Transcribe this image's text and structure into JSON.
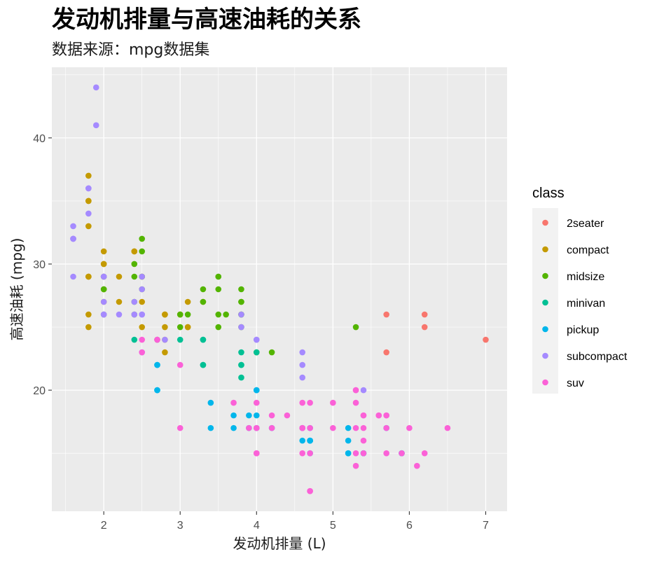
{
  "chart_data": {
    "type": "scatter",
    "title": "发动机排量与高速油耗的关系",
    "subtitle": "数据来源：mpg数据集",
    "xlabel": "发动机排量 (L)",
    "ylabel": "高速油耗 (mpg)",
    "xlim": [
      1.32,
      7.28
    ],
    "ylim": [
      10.4,
      45.6
    ],
    "x_ticks": [
      2,
      3,
      4,
      5,
      6,
      7
    ],
    "y_ticks": [
      20,
      30,
      40
    ],
    "grid": true,
    "legend": {
      "title": "class",
      "position": "right",
      "entries": [
        {
          "name": "2seater",
          "color": "#F8766D"
        },
        {
          "name": "compact",
          "color": "#C49A00"
        },
        {
          "name": "midsize",
          "color": "#53B400"
        },
        {
          "name": "minivan",
          "color": "#00C094"
        },
        {
          "name": "pickup",
          "color": "#00B6EB"
        },
        {
          "name": "subcompact",
          "color": "#A58AFF"
        },
        {
          "name": "suv",
          "color": "#FB61D7"
        }
      ]
    },
    "series": [
      {
        "name": "2seater",
        "points": [
          [
            5.7,
            26
          ],
          [
            5.7,
            23
          ],
          [
            6.2,
            26
          ],
          [
            6.2,
            25
          ],
          [
            7.0,
            24
          ]
        ]
      },
      {
        "name": "compact",
        "points": [
          [
            1.8,
            29
          ],
          [
            1.8,
            29
          ],
          [
            2.0,
            31
          ],
          [
            2.0,
            30
          ],
          [
            2.8,
            26
          ],
          [
            2.8,
            26
          ],
          [
            3.1,
            27
          ],
          [
            1.8,
            26
          ],
          [
            1.8,
            25
          ],
          [
            2.0,
            28
          ],
          [
            2.0,
            27
          ],
          [
            2.8,
            25
          ],
          [
            3.1,
            25
          ],
          [
            3.1,
            25
          ],
          [
            2.2,
            27
          ],
          [
            2.2,
            29
          ],
          [
            2.4,
            31
          ],
          [
            2.4,
            31
          ],
          [
            3.0,
            26
          ],
          [
            3.0,
            26
          ],
          [
            3.3,
            27
          ],
          [
            1.8,
            33
          ],
          [
            1.8,
            35
          ],
          [
            1.8,
            37
          ],
          [
            1.8,
            35
          ],
          [
            1.8,
            29
          ],
          [
            2.0,
            29
          ],
          [
            2.0,
            30
          ],
          [
            2.8,
            26
          ],
          [
            2.0,
            29
          ],
          [
            2.5,
            27
          ],
          [
            2.5,
            25
          ],
          [
            2.5,
            29
          ],
          [
            2.5,
            29
          ],
          [
            2.8,
            24
          ],
          [
            2.8,
            23
          ],
          [
            2.7,
            24
          ]
        ]
      },
      {
        "name": "midsize",
        "points": [
          [
            2.4,
            27
          ],
          [
            2.4,
            30
          ],
          [
            3.1,
            26
          ],
          [
            3.5,
            29
          ],
          [
            3.6,
            26
          ],
          [
            2.4,
            29
          ],
          [
            3.0,
            26
          ],
          [
            3.3,
            28
          ],
          [
            3.3,
            27
          ],
          [
            3.8,
            28
          ],
          [
            3.8,
            27
          ],
          [
            3.8,
            26
          ],
          [
            5.3,
            25
          ],
          [
            2.0,
            29
          ],
          [
            2.0,
            28
          ],
          [
            2.5,
            32
          ],
          [
            2.5,
            31
          ],
          [
            2.5,
            29
          ],
          [
            2.5,
            28
          ],
          [
            3.5,
            25
          ],
          [
            3.5,
            26
          ],
          [
            3.8,
            25
          ],
          [
            4.0,
            23
          ],
          [
            4.2,
            23
          ],
          [
            3.8,
            26
          ],
          [
            3.8,
            27
          ],
          [
            2.0,
            28
          ],
          [
            2.0,
            26
          ],
          [
            2.4,
            26
          ],
          [
            3.0,
            25
          ],
          [
            3.5,
            29
          ],
          [
            3.5,
            28
          ]
        ]
      },
      {
        "name": "minivan",
        "points": [
          [
            2.4,
            24
          ],
          [
            3.0,
            24
          ],
          [
            3.3,
            22
          ],
          [
            3.3,
            22
          ],
          [
            3.3,
            24
          ],
          [
            3.3,
            24
          ],
          [
            3.8,
            22
          ],
          [
            3.8,
            21
          ],
          [
            3.8,
            23
          ],
          [
            4.0,
            23
          ],
          [
            3.8,
            22
          ]
        ]
      },
      {
        "name": "pickup",
        "points": [
          [
            2.7,
            20
          ],
          [
            2.7,
            22
          ],
          [
            3.4,
            17
          ],
          [
            3.4,
            19
          ],
          [
            3.9,
            18
          ],
          [
            4.7,
            17
          ],
          [
            4.7,
            16
          ],
          [
            4.7,
            16
          ],
          [
            5.2,
            15
          ],
          [
            5.2,
            15
          ],
          [
            3.7,
            18
          ],
          [
            3.7,
            17
          ],
          [
            3.9,
            17
          ],
          [
            4.7,
            15
          ],
          [
            4.7,
            16
          ],
          [
            4.7,
            16
          ],
          [
            5.2,
            17
          ],
          [
            5.7,
            17
          ],
          [
            5.9,
            15
          ],
          [
            4.7,
            16
          ],
          [
            4.0,
            20
          ],
          [
            4.0,
            17
          ],
          [
            4.6,
            17
          ],
          [
            5.4,
            15
          ],
          [
            2.7,
            20
          ],
          [
            2.7,
            22
          ],
          [
            4.0,
            18
          ],
          [
            4.0,
            20
          ],
          [
            4.2,
            17
          ],
          [
            4.6,
            16
          ],
          [
            5.2,
            16
          ],
          [
            5.4,
            15
          ],
          [
            5.9,
            15
          ]
        ]
      },
      {
        "name": "subcompact",
        "points": [
          [
            3.8,
            26
          ],
          [
            3.8,
            25
          ],
          [
            4.0,
            24
          ],
          [
            4.0,
            24
          ],
          [
            4.6,
            23
          ],
          [
            4.6,
            22
          ],
          [
            4.6,
            21
          ],
          [
            5.4,
            20
          ],
          [
            1.6,
            33
          ],
          [
            1.6,
            32
          ],
          [
            1.6,
            32
          ],
          [
            1.6,
            29
          ],
          [
            1.6,
            32
          ],
          [
            1.8,
            34
          ],
          [
            1.8,
            36
          ],
          [
            1.8,
            36
          ],
          [
            2.0,
            29
          ],
          [
            2.4,
            26
          ],
          [
            2.4,
            27
          ],
          [
            2.5,
            26
          ],
          [
            2.5,
            26
          ],
          [
            2.2,
            26
          ],
          [
            2.5,
            28
          ],
          [
            1.9,
            44
          ],
          [
            2.0,
            29
          ],
          [
            2.0,
            26
          ],
          [
            2.0,
            29
          ],
          [
            2.8,
            24
          ],
          [
            1.9,
            41
          ],
          [
            2.0,
            26
          ],
          [
            2.0,
            27
          ],
          [
            2.5,
            29
          ],
          [
            2.7,
            24
          ],
          [
            2.5,
            23
          ]
        ]
      },
      {
        "name": "suv",
        "points": [
          [
            5.3,
            20
          ],
          [
            5.3,
            15
          ],
          [
            5.3,
            20
          ],
          [
            5.7,
            17
          ],
          [
            6.0,
            17
          ],
          [
            5.7,
            15
          ],
          [
            5.7,
            18
          ],
          [
            6.2,
            15
          ],
          [
            6.5,
            17
          ],
          [
            4.0,
            17
          ],
          [
            4.2,
            17
          ],
          [
            4.4,
            18
          ],
          [
            4.6,
            17
          ],
          [
            5.4,
            17
          ],
          [
            5.4,
            18
          ],
          [
            3.7,
            19
          ],
          [
            4.7,
            12
          ],
          [
            4.7,
            12
          ],
          [
            4.7,
            19
          ],
          [
            5.7,
            18
          ],
          [
            6.1,
            14
          ],
          [
            4.0,
            19
          ],
          [
            4.6,
            17
          ],
          [
            4.6,
            19
          ],
          [
            5.0,
            17
          ],
          [
            5.4,
            15
          ],
          [
            5.4,
            16
          ],
          [
            5.4,
            18
          ],
          [
            4.0,
            15
          ],
          [
            4.0,
            17
          ],
          [
            4.6,
            17
          ],
          [
            5.0,
            19
          ],
          [
            2.5,
            24
          ],
          [
            2.5,
            23
          ],
          [
            2.7,
            24
          ],
          [
            3.0,
            22
          ],
          [
            3.0,
            17
          ],
          [
            4.2,
            18
          ],
          [
            3.9,
            17
          ],
          [
            4.7,
            17
          ],
          [
            4.7,
            15
          ],
          [
            5.3,
            14
          ],
          [
            5.3,
            19
          ],
          [
            5.6,
            18
          ],
          [
            4.6,
            15
          ],
          [
            4.0,
            15
          ],
          [
            5.3,
            17
          ],
          [
            5.6,
            18
          ],
          [
            5.9,
            15
          ]
        ]
      }
    ]
  }
}
